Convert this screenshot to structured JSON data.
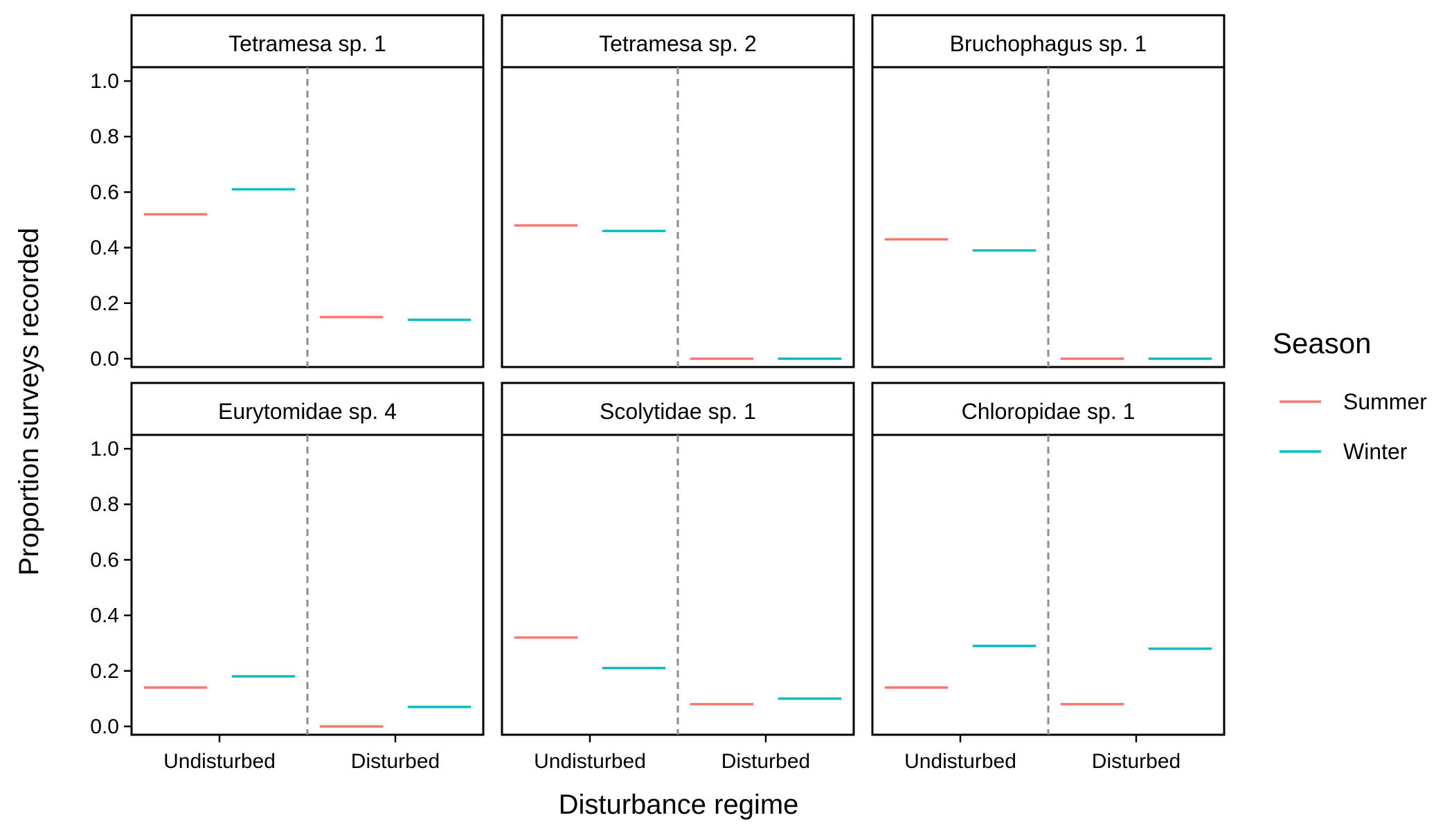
{
  "chart_data": {
    "type": "faceted-segment",
    "xlabel": "Disturbance regime",
    "ylabel": "Proportion surveys recorded",
    "categories": [
      "Undisturbed",
      "Disturbed"
    ],
    "ylim": [
      -0.03,
      1.05
    ],
    "yticks": [
      0.0,
      0.2,
      0.4,
      0.6,
      0.8,
      1.0
    ],
    "ytick_labels": [
      "0.0",
      "0.2",
      "0.4",
      "0.6",
      "0.8",
      "1.0"
    ],
    "divider": "dashed vertical line between categories",
    "legend": {
      "title": "Season",
      "placement": "right",
      "entries": [
        {
          "name": "Summer",
          "color": "#F8766D"
        },
        {
          "name": "Winter",
          "color": "#00BFC4"
        }
      ]
    },
    "panels": [
      {
        "title": "Tetramesa sp. 1",
        "series": [
          {
            "name": "Summer",
            "values": [
              0.52,
              0.15
            ]
          },
          {
            "name": "Winter",
            "values": [
              0.61,
              0.14
            ]
          }
        ]
      },
      {
        "title": "Tetramesa sp. 2",
        "series": [
          {
            "name": "Summer",
            "values": [
              0.48,
              0.0
            ]
          },
          {
            "name": "Winter",
            "values": [
              0.46,
              0.0
            ]
          }
        ]
      },
      {
        "title": "Bruchophagus sp. 1",
        "series": [
          {
            "name": "Summer",
            "values": [
              0.43,
              0.0
            ]
          },
          {
            "name": "Winter",
            "values": [
              0.39,
              0.0
            ]
          }
        ]
      },
      {
        "title": "Eurytomidae sp. 4",
        "series": [
          {
            "name": "Summer",
            "values": [
              0.14,
              0.0
            ]
          },
          {
            "name": "Winter",
            "values": [
              0.18,
              0.07
            ]
          }
        ]
      },
      {
        "title": "Scolytidae sp. 1",
        "series": [
          {
            "name": "Summer",
            "values": [
              0.32,
              0.08
            ]
          },
          {
            "name": "Winter",
            "values": [
              0.21,
              0.1
            ]
          }
        ]
      },
      {
        "title": "Chloropidae sp. 1",
        "series": [
          {
            "name": "Summer",
            "values": [
              0.14,
              0.08
            ]
          },
          {
            "name": "Winter",
            "values": [
              0.29,
              0.28
            ]
          }
        ]
      }
    ]
  }
}
